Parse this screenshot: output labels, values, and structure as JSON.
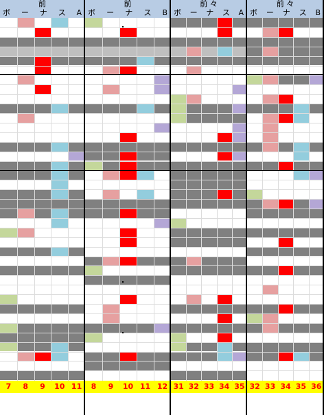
{
  "colors": {
    "header": "#b8cce4",
    "gray": "#808080",
    "lightgray": "#bfbfbf",
    "red": "#ff0000",
    "pink": "#e6a0a0",
    "blue": "#93cddd",
    "purple": "#b4a7d6",
    "green": "#c4d79b",
    "footer": "#ffff00",
    "footer_text": "#ff0000"
  },
  "panels": [
    {
      "title": "前",
      "columns": [
        "ボ",
        "ー",
        "ナ",
        "ス",
        "A"
      ],
      "numbers": [
        "7",
        "8",
        "9",
        "10",
        "11"
      ]
    },
    {
      "title": "前",
      "columns": [
        "ボ",
        "ー",
        "ナ",
        "ス",
        "B"
      ],
      "numbers": [
        "8",
        "9",
        "10",
        "11",
        "12"
      ]
    },
    {
      "title": "前 々",
      "columns": [
        "ボ",
        "ー",
        "ナ",
        "ス",
        "A"
      ],
      "numbers": [
        "31",
        "32",
        "33",
        "34",
        "35"
      ]
    },
    {
      "title": "前 々",
      "columns": [
        "ボ",
        "ー",
        "ナ",
        "ス",
        "B"
      ],
      "numbers": [
        "32",
        "33",
        "34",
        "35",
        "36"
      ]
    }
  ]
}
